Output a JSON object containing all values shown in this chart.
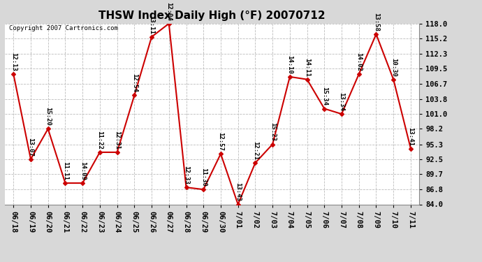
{
  "title": "THSW Index Daily High (°F) 20070712",
  "copyright": "Copyright 2007 Cartronics.com",
  "x_labels": [
    "06/18",
    "06/19",
    "06/20",
    "06/21",
    "06/22",
    "06/23",
    "06/24",
    "06/25",
    "06/26",
    "06/27",
    "06/28",
    "06/29",
    "06/30",
    "7/01",
    "7/02",
    "7/03",
    "7/04",
    "7/05",
    "7/06",
    "7/07",
    "7/08",
    "7/09",
    "7/10",
    "7/11"
  ],
  "y_values": [
    108.5,
    92.5,
    98.2,
    88.0,
    88.0,
    93.8,
    93.8,
    104.5,
    115.5,
    118.0,
    87.2,
    86.8,
    93.5,
    84.0,
    91.8,
    95.3,
    108.0,
    107.5,
    102.0,
    101.0,
    108.5,
    116.0,
    107.5,
    94.5
  ],
  "point_labels": [
    "12:13",
    "13:07",
    "15:20",
    "11:11",
    "14:09",
    "11:22",
    "12:31",
    "12:54",
    "13:11",
    "12:04",
    "12:33",
    "11:30",
    "12:57",
    "13:43",
    "12:21",
    "15:23",
    "14:10",
    "14:11",
    "15:34",
    "13:34",
    "14:02",
    "13:58",
    "10:30",
    "13:41"
  ],
  "y_min": 84.0,
  "y_max": 118.0,
  "y_ticks": [
    84.0,
    86.8,
    89.7,
    92.5,
    95.3,
    98.2,
    101.0,
    103.8,
    106.7,
    109.5,
    112.3,
    115.2,
    118.0
  ],
  "line_color": "#cc0000",
  "marker_color": "#cc0000",
  "bg_color": "#d8d8d8",
  "plot_bg_color": "#ffffff",
  "grid_color": "#bbbbbb",
  "title_fontsize": 11,
  "label_fontsize": 6.5,
  "tick_fontsize": 7.5,
  "copyright_fontsize": 6.5
}
